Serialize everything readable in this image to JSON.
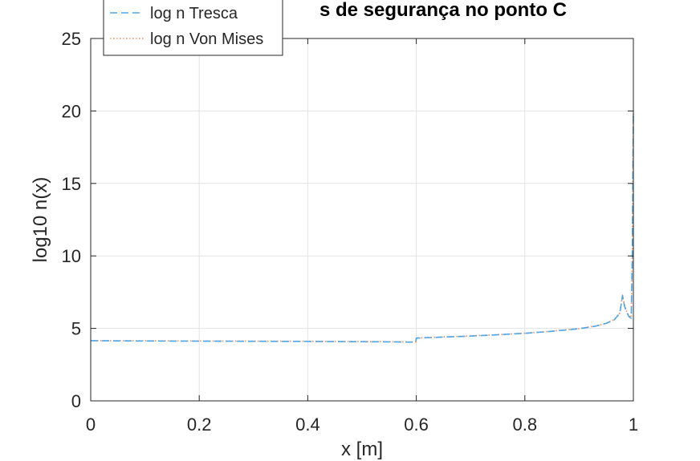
{
  "chart_data": {
    "type": "line",
    "title_visible": "s de segurança no ponto C",
    "xlabel": "x [m]",
    "ylabel": "log10 n(x)",
    "xlim": [
      0,
      1
    ],
    "ylim": [
      0,
      25
    ],
    "xticks": [
      "0",
      "0.2",
      "0.4",
      "0.6",
      "0.8",
      "1"
    ],
    "yticks": [
      "0",
      "5",
      "10",
      "15",
      "20",
      "25"
    ],
    "grid": true,
    "legend": {
      "placement": "top-left"
    },
    "series": [
      {
        "name": "log n Tresca",
        "color": "#4DA6E8",
        "dash": "dashed",
        "x": [
          0,
          0.05,
          0.1,
          0.2,
          0.3,
          0.4,
          0.5,
          0.55,
          0.599,
          0.6,
          0.65,
          0.7,
          0.75,
          0.8,
          0.85,
          0.9,
          0.93,
          0.95,
          0.965,
          0.975,
          0.98,
          0.984,
          0.988,
          0.992,
          0.996,
          0.998,
          1.0
        ],
        "y": [
          4.15,
          4.14,
          4.13,
          4.12,
          4.11,
          4.1,
          4.08,
          4.07,
          4.05,
          4.33,
          4.4,
          4.47,
          4.56,
          4.66,
          4.8,
          4.98,
          5.15,
          5.35,
          5.6,
          6.05,
          7.25,
          6.5,
          6.1,
          5.8,
          5.7,
          10.0,
          20.0
        ]
      },
      {
        "name": "log n Von Mises",
        "color": "#F08A5A",
        "dash": "dotted",
        "x": [
          0,
          0.05,
          0.1,
          0.2,
          0.3,
          0.4,
          0.5,
          0.55,
          0.599,
          0.6,
          0.65,
          0.7,
          0.75,
          0.8,
          0.85,
          0.9,
          0.93,
          0.95,
          0.965,
          0.975,
          0.98,
          0.984,
          0.988,
          0.992,
          0.996,
          0.998,
          1.0
        ],
        "y": [
          4.16,
          4.15,
          4.14,
          4.13,
          4.12,
          4.11,
          4.09,
          4.08,
          4.06,
          4.34,
          4.41,
          4.48,
          4.57,
          4.67,
          4.81,
          4.99,
          5.16,
          5.36,
          5.61,
          6.06,
          7.3,
          6.55,
          6.15,
          5.85,
          5.75,
          10.2,
          20.0
        ]
      }
    ]
  }
}
